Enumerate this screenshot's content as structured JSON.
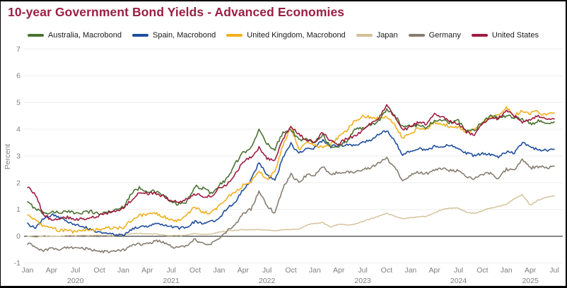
{
  "title": "10-year Government Bond Yields - Advanced Economies",
  "colors": {
    "title_text": "#9b1f45",
    "axis_text": "#7f7f7f",
    "grid_line": "#ededed",
    "zero_line": "#404040",
    "frame_border": "#000000",
    "background": "#ffffff"
  },
  "chart_data": {
    "type": "line",
    "title": "10-year Government Bond Yields - Advanced Economies",
    "xlabel": "",
    "ylabel": "Percent",
    "ylim": [
      -1,
      7
    ],
    "yticks": [
      -1,
      0,
      1,
      2,
      3,
      4,
      5,
      6,
      7
    ],
    "grid": "horizontal",
    "legend_position": "top",
    "x_range": [
      "2020-01",
      "2025-07"
    ],
    "x_months_total": 66,
    "x_ticks": [
      {
        "label": "Jan",
        "month": 0
      },
      {
        "label": "Apr",
        "month": 3
      },
      {
        "label": "Jul",
        "month": 6
      },
      {
        "label": "Oct",
        "month": 9
      },
      {
        "label": "Jan",
        "month": 12
      },
      {
        "label": "Apr",
        "month": 15
      },
      {
        "label": "Jul",
        "month": 18
      },
      {
        "label": "Oct",
        "month": 21
      },
      {
        "label": "Jan",
        "month": 24
      },
      {
        "label": "Apr",
        "month": 27
      },
      {
        "label": "Jul",
        "month": 30
      },
      {
        "label": "Oct",
        "month": 33
      },
      {
        "label": "Jan",
        "month": 36
      },
      {
        "label": "Apr",
        "month": 39
      },
      {
        "label": "Jul",
        "month": 42
      },
      {
        "label": "Oct",
        "month": 45
      },
      {
        "label": "Jan",
        "month": 48
      },
      {
        "label": "Apr",
        "month": 51
      },
      {
        "label": "Jul",
        "month": 54
      },
      {
        "label": "Oct",
        "month": 57
      },
      {
        "label": "Jan",
        "month": 60
      },
      {
        "label": "Apr",
        "month": 63
      },
      {
        "label": "Jul",
        "month": 66
      }
    ],
    "year_labels": [
      {
        "label": "2020",
        "month": 6
      },
      {
        "label": "2021",
        "month": 18
      },
      {
        "label": "2022",
        "month": 30
      },
      {
        "label": "2023",
        "month": 42
      },
      {
        "label": "2024",
        "month": 54
      },
      {
        "label": "2025",
        "month": 63
      }
    ],
    "series": [
      {
        "name": "Australia, Macrobond",
        "color": "#4a7232",
        "values": [
          1.25,
          1.05,
          0.85,
          0.9,
          0.9,
          0.9,
          0.88,
          0.9,
          0.92,
          0.83,
          0.9,
          0.97,
          1.1,
          1.6,
          1.8,
          1.7,
          1.65,
          1.55,
          1.25,
          1.2,
          1.3,
          1.85,
          1.8,
          1.6,
          1.9,
          2.15,
          2.7,
          3.1,
          3.35,
          3.95,
          3.45,
          3.25,
          3.9,
          4.0,
          3.6,
          3.6,
          3.55,
          3.8,
          3.3,
          3.35,
          3.55,
          4.0,
          4.05,
          4.15,
          4.3,
          4.75,
          4.5,
          4.1,
          4.15,
          4.15,
          4.05,
          4.35,
          4.3,
          4.25,
          4.3,
          3.95,
          3.95,
          4.3,
          4.5,
          4.4,
          4.5,
          4.4,
          4.4,
          4.2,
          4.3,
          4.2,
          4.28
        ]
      },
      {
        "name": "Spain, Macrobond",
        "color": "#1f4e9e",
        "values": [
          0.45,
          0.3,
          0.65,
          0.8,
          0.7,
          0.55,
          0.45,
          0.35,
          0.25,
          0.15,
          0.1,
          0.05,
          0.05,
          0.25,
          0.35,
          0.38,
          0.5,
          0.45,
          0.35,
          0.3,
          0.35,
          0.55,
          0.45,
          0.55,
          0.65,
          1.05,
          1.25,
          1.75,
          2.1,
          2.75,
          2.3,
          2.05,
          2.95,
          3.45,
          3.1,
          3.3,
          3.3,
          3.6,
          3.35,
          3.4,
          3.4,
          3.4,
          3.5,
          3.6,
          3.8,
          3.95,
          3.6,
          3.0,
          3.2,
          3.3,
          3.2,
          3.35,
          3.35,
          3.4,
          3.25,
          3.1,
          3.0,
          3.1,
          3.05,
          2.95,
          3.15,
          3.1,
          3.5,
          3.3,
          3.25,
          3.2,
          3.25
        ]
      },
      {
        "name": "United Kingdom, Macrobond",
        "color": "#f0b01e",
        "values": [
          0.8,
          0.6,
          0.35,
          0.3,
          0.22,
          0.2,
          0.15,
          0.25,
          0.22,
          0.25,
          0.35,
          0.28,
          0.32,
          0.6,
          0.78,
          0.8,
          0.85,
          0.75,
          0.6,
          0.58,
          0.8,
          1.1,
          0.9,
          0.85,
          1.15,
          1.45,
          1.6,
          1.9,
          2.0,
          2.45,
          2.1,
          2.45,
          3.4,
          4.1,
          3.2,
          3.55,
          3.4,
          3.3,
          3.45,
          3.7,
          3.95,
          4.3,
          4.5,
          4.45,
          4.4,
          4.5,
          4.2,
          3.65,
          3.85,
          4.05,
          4.0,
          4.25,
          4.2,
          4.1,
          4.1,
          3.9,
          4.0,
          4.25,
          4.45,
          4.55,
          4.8,
          4.5,
          4.7,
          4.6,
          4.65,
          4.5,
          4.62
        ]
      },
      {
        "name": "Japan",
        "color": "#d3bf96",
        "values": [
          0.0,
          -0.05,
          0.02,
          0.0,
          0.0,
          0.02,
          0.02,
          0.03,
          0.02,
          0.03,
          0.03,
          0.02,
          0.05,
          0.1,
          0.1,
          0.09,
          0.08,
          0.05,
          0.02,
          0.02,
          0.05,
          0.09,
          0.07,
          0.07,
          0.15,
          0.2,
          0.22,
          0.24,
          0.24,
          0.24,
          0.23,
          0.2,
          0.25,
          0.25,
          0.25,
          0.42,
          0.48,
          0.5,
          0.35,
          0.45,
          0.42,
          0.45,
          0.55,
          0.65,
          0.75,
          0.85,
          0.75,
          0.65,
          0.7,
          0.72,
          0.75,
          0.88,
          1.0,
          1.05,
          1.05,
          0.9,
          0.85,
          0.95,
          1.05,
          1.1,
          1.2,
          1.4,
          1.55,
          1.15,
          1.35,
          1.45,
          1.5
        ]
      },
      {
        "name": "Germany",
        "color": "#877d70",
        "values": [
          -0.25,
          -0.45,
          -0.55,
          -0.45,
          -0.5,
          -0.4,
          -0.45,
          -0.45,
          -0.5,
          -0.58,
          -0.58,
          -0.58,
          -0.52,
          -0.35,
          -0.3,
          -0.28,
          -0.18,
          -0.22,
          -0.4,
          -0.45,
          -0.32,
          -0.12,
          -0.3,
          -0.3,
          -0.05,
          0.2,
          0.4,
          0.85,
          1.0,
          1.65,
          1.15,
          0.85,
          1.8,
          2.3,
          2.0,
          2.3,
          2.3,
          2.6,
          2.3,
          2.4,
          2.4,
          2.4,
          2.5,
          2.55,
          2.75,
          2.9,
          2.6,
          2.05,
          2.3,
          2.4,
          2.35,
          2.45,
          2.55,
          2.45,
          2.45,
          2.25,
          2.15,
          2.3,
          2.35,
          2.15,
          2.5,
          2.45,
          2.85,
          2.55,
          2.6,
          2.55,
          2.62
        ]
      },
      {
        "name": "United States",
        "color": "#9e1b3f",
        "values": [
          1.85,
          1.55,
          0.8,
          0.62,
          0.68,
          0.7,
          0.62,
          0.65,
          0.68,
          0.78,
          0.87,
          0.92,
          1.05,
          1.35,
          1.62,
          1.6,
          1.6,
          1.5,
          1.3,
          1.28,
          1.4,
          1.58,
          1.5,
          1.48,
          1.8,
          1.95,
          2.3,
          2.8,
          2.95,
          3.3,
          2.9,
          2.85,
          3.65,
          4.1,
          3.8,
          3.6,
          3.5,
          3.9,
          3.55,
          3.45,
          3.65,
          3.75,
          3.95,
          4.2,
          4.4,
          4.9,
          4.45,
          3.95,
          4.1,
          4.25,
          4.2,
          4.6,
          4.45,
          4.3,
          4.2,
          3.9,
          3.75,
          4.2,
          4.4,
          4.4,
          4.7,
          4.5,
          4.25,
          4.35,
          4.5,
          4.4,
          4.38
        ]
      }
    ]
  }
}
